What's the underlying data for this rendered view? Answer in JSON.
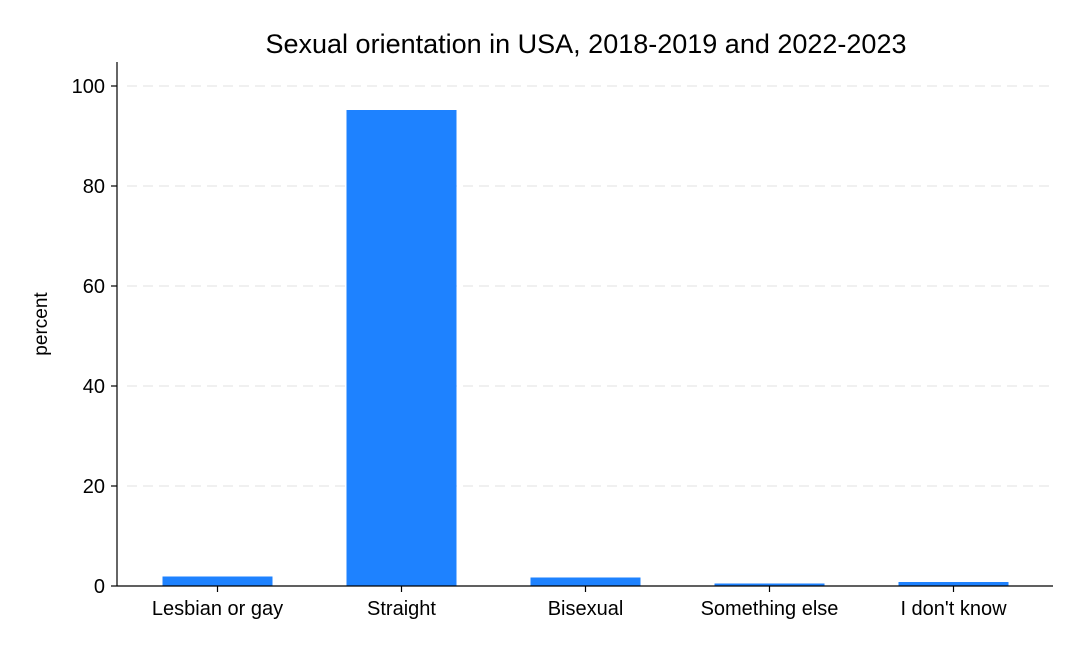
{
  "chart_data": {
    "type": "bar",
    "title": "Sexual orientation in USA, 2018-2019 and 2022-2023",
    "xlabel": "",
    "ylabel": "percent",
    "categories": [
      "Lesbian or gay",
      "Straight",
      "Bisexual",
      "Something else",
      "I don't know"
    ],
    "values": [
      1.9,
      95.2,
      1.7,
      0.5,
      0.8
    ],
    "ylim": [
      0,
      100
    ],
    "yticks": [
      0,
      20,
      40,
      60,
      80,
      100
    ],
    "grid": true,
    "legend": "none",
    "bar_color": "#1e82ff",
    "grid_color": "#e6e6e6"
  }
}
